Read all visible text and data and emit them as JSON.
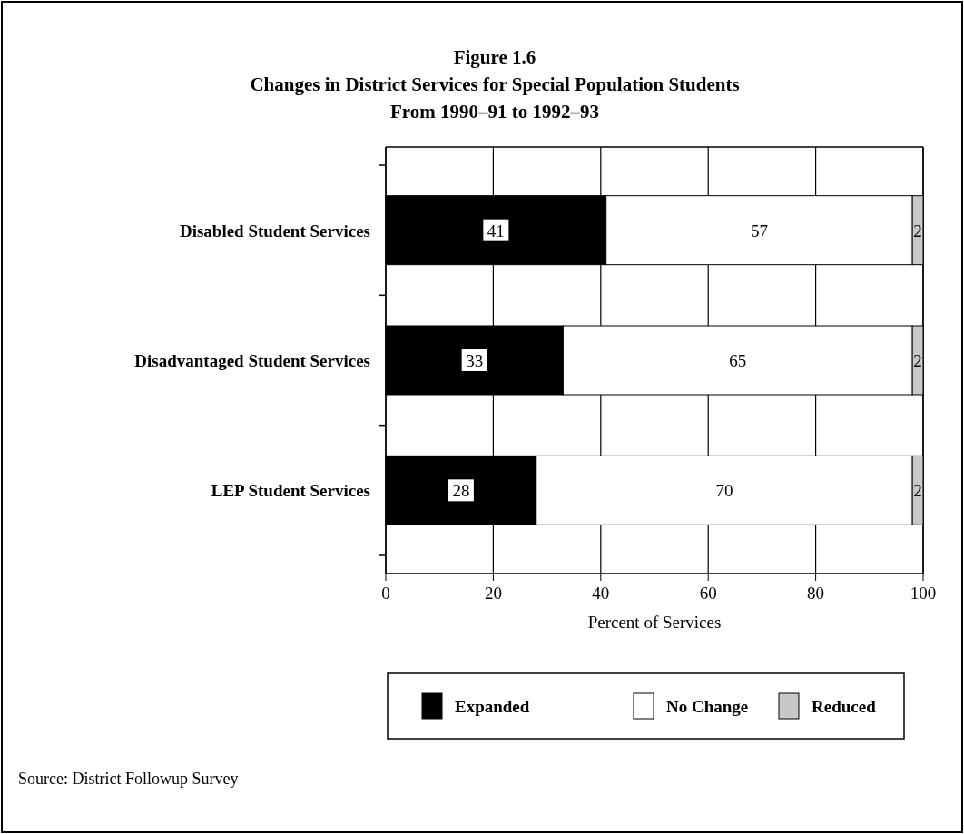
{
  "chart_data": {
    "type": "bar",
    "orientation": "horizontal",
    "stacked": true,
    "title": "Figure 1.6",
    "subtitle": "Changes in District Services for Special Population Students\nFrom 1990–91 to 1992–93",
    "xlabel": "Percent of Services",
    "categories": [
      "Disabled Student Services",
      "Disadvantaged Student Services",
      "LEP Student Services"
    ],
    "series": [
      {
        "name": "Expanded",
        "color": "#000000",
        "values": [
          41,
          33,
          28
        ]
      },
      {
        "name": "No Change",
        "color": "#ffffff",
        "values": [
          57,
          65,
          70
        ]
      },
      {
        "name": "Reduced",
        "color": "#c8c8c8",
        "values": [
          2,
          2,
          2
        ]
      }
    ],
    "xlim": [
      0,
      100
    ],
    "xticks": [
      0,
      20,
      40,
      60,
      80,
      100
    ],
    "grid": "x",
    "legend": "bottom",
    "data_labels": true,
    "annotations": [
      "Source: District Followup Survey"
    ]
  }
}
